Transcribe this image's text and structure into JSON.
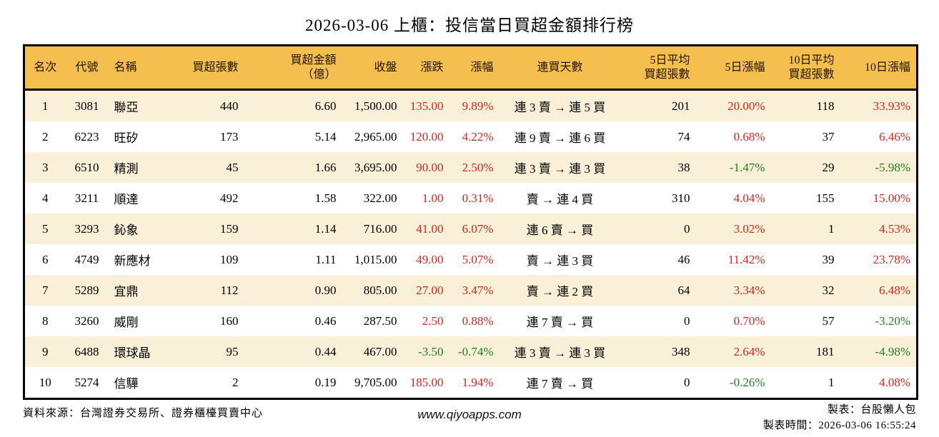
{
  "colors": {
    "header_bg": "#F5BF50",
    "row_alt_bg": "#FAF0D7",
    "up": "#D3261D",
    "down": "#1E7E24",
    "border": "#000000"
  },
  "chart_data": {
    "type": "table",
    "title": "2026-03-06 上櫃：投信當日買超金額排行榜",
    "layout_hints": {
      "striped": true,
      "header_bg": "#F5BF50",
      "positive_color": "#D3261D",
      "negative_color": "#1E7E24"
    },
    "columns": [
      {
        "key": "rank",
        "label": "名次"
      },
      {
        "key": "code",
        "label": "代號"
      },
      {
        "key": "name",
        "label": "名稱"
      },
      {
        "key": "net_buy_lots",
        "label": "買超張數"
      },
      {
        "key": "net_buy_amount",
        "label": "買超金額\n（億）"
      },
      {
        "key": "close",
        "label": "收盤"
      },
      {
        "key": "change",
        "label": "漲跌"
      },
      {
        "key": "change_pct",
        "label": "漲幅"
      },
      {
        "key": "streak",
        "label": "連買天數"
      },
      {
        "key": "avg5_lots",
        "label": "5日平均\n買超張數"
      },
      {
        "key": "pct5",
        "label": "5日漲幅"
      },
      {
        "key": "avg10_lots",
        "label": "10日平均\n買超張數"
      },
      {
        "key": "pct10",
        "label": "10日漲幅"
      }
    ],
    "signed_color_keys": [
      "change",
      "change_pct",
      "pct5",
      "pct10"
    ],
    "rows": [
      {
        "rank": "1",
        "code": "3081",
        "name": "聯亞",
        "net_buy_lots": "440",
        "net_buy_amount": "6.60",
        "close": "1,500.00",
        "change": "135.00",
        "change_pct": "9.89%",
        "streak": "連 3 賣 → 連 5 買",
        "avg5_lots": "201",
        "pct5": "20.00%",
        "avg10_lots": "118",
        "pct10": "33.93%"
      },
      {
        "rank": "2",
        "code": "6223",
        "name": "旺矽",
        "net_buy_lots": "173",
        "net_buy_amount": "5.14",
        "close": "2,965.00",
        "change": "120.00",
        "change_pct": "4.22%",
        "streak": "連 9 賣 → 連 6 買",
        "avg5_lots": "74",
        "pct5": "0.68%",
        "avg10_lots": "37",
        "pct10": "6.46%"
      },
      {
        "rank": "3",
        "code": "6510",
        "name": "精測",
        "net_buy_lots": "45",
        "net_buy_amount": "1.66",
        "close": "3,695.00",
        "change": "90.00",
        "change_pct": "2.50%",
        "streak": "連 3 賣 → 連 3 買",
        "avg5_lots": "38",
        "pct5": "-1.47%",
        "avg10_lots": "29",
        "pct10": "-5.98%"
      },
      {
        "rank": "4",
        "code": "3211",
        "name": "順達",
        "net_buy_lots": "492",
        "net_buy_amount": "1.58",
        "close": "322.00",
        "change": "1.00",
        "change_pct": "0.31%",
        "streak": "賣 → 連 4 買",
        "avg5_lots": "310",
        "pct5": "4.04%",
        "avg10_lots": "155",
        "pct10": "15.00%"
      },
      {
        "rank": "5",
        "code": "3293",
        "name": "鈊象",
        "net_buy_lots": "159",
        "net_buy_amount": "1.14",
        "close": "716.00",
        "change": "41.00",
        "change_pct": "6.07%",
        "streak": "連 6 賣 → 買",
        "avg5_lots": "0",
        "pct5": "3.02%",
        "avg10_lots": "1",
        "pct10": "4.53%"
      },
      {
        "rank": "6",
        "code": "4749",
        "name": "新應材",
        "net_buy_lots": "109",
        "net_buy_amount": "1.11",
        "close": "1,015.00",
        "change": "49.00",
        "change_pct": "5.07%",
        "streak": "賣 → 連 3 買",
        "avg5_lots": "46",
        "pct5": "11.42%",
        "avg10_lots": "39",
        "pct10": "23.78%"
      },
      {
        "rank": "7",
        "code": "5289",
        "name": "宜鼎",
        "net_buy_lots": "112",
        "net_buy_amount": "0.90",
        "close": "805.00",
        "change": "27.00",
        "change_pct": "3.47%",
        "streak": "賣 → 連 2 買",
        "avg5_lots": "64",
        "pct5": "3.34%",
        "avg10_lots": "32",
        "pct10": "6.48%"
      },
      {
        "rank": "8",
        "code": "3260",
        "name": "威剛",
        "net_buy_lots": "160",
        "net_buy_amount": "0.46",
        "close": "287.50",
        "change": "2.50",
        "change_pct": "0.88%",
        "streak": "連 7 賣 → 買",
        "avg5_lots": "0",
        "pct5": "0.70%",
        "avg10_lots": "57",
        "pct10": "-3.20%"
      },
      {
        "rank": "9",
        "code": "6488",
        "name": "環球晶",
        "net_buy_lots": "95",
        "net_buy_amount": "0.44",
        "close": "467.00",
        "change": "-3.50",
        "change_pct": "-0.74%",
        "streak": "連 3 賣 → 連 3 買",
        "avg5_lots": "348",
        "pct5": "2.64%",
        "avg10_lots": "181",
        "pct10": "-4.98%"
      },
      {
        "rank": "10",
        "code": "5274",
        "name": "信驊",
        "net_buy_lots": "2",
        "net_buy_amount": "0.19",
        "close": "9,705.00",
        "change": "185.00",
        "change_pct": "1.94%",
        "streak": "連 7 賣 → 買",
        "avg5_lots": "0",
        "pct5": "-0.26%",
        "avg10_lots": "1",
        "pct10": "4.08%"
      }
    ]
  },
  "footer": {
    "source": "資料來源：台灣證券交易所、證券櫃檯買賣中心",
    "website": "www.qiyoapps.com",
    "maker": "製表：台股懶人包",
    "made_time": "製表時間：2026-03-06 16:55:24"
  }
}
